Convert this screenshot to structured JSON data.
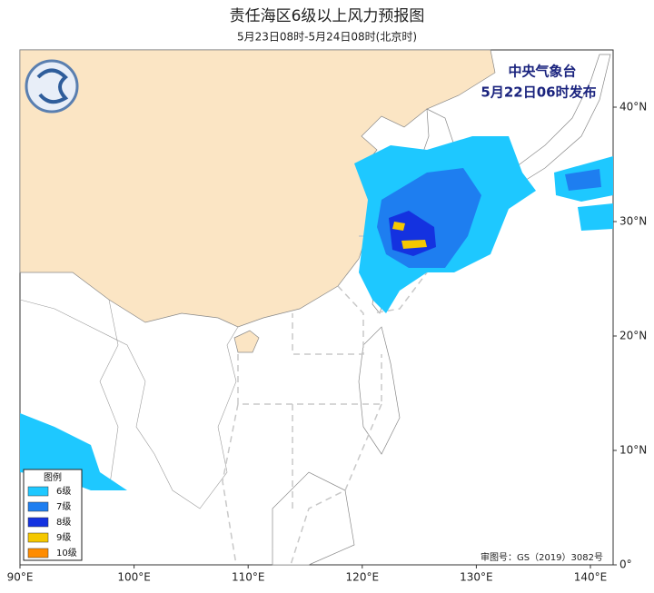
{
  "header": {
    "title": "责任海区6级以上风力预报图",
    "subtitle": "5月23日08时-5月24日08时(北京时)"
  },
  "issuer": {
    "name": "中央气象台",
    "issued": "5月22日06时发布"
  },
  "axes": {
    "lat_labels": [
      "40°N",
      "30°N",
      "20°N",
      "10°N",
      "0°"
    ],
    "lon_labels": [
      "90°E",
      "100°E",
      "110°E",
      "120°E",
      "130°E",
      "140°E"
    ]
  },
  "legend": {
    "title": "图例",
    "items": [
      {
        "label": "6级",
        "color": "#1ec8ff"
      },
      {
        "label": "7级",
        "color": "#1e7ef0"
      },
      {
        "label": "8级",
        "color": "#1432e0"
      },
      {
        "label": "9级",
        "color": "#f5c800"
      },
      {
        "label": "10级",
        "color": "#ff8c00"
      }
    ]
  },
  "footer": {
    "approval": "审图号：GS（2019）3082号"
  }
}
